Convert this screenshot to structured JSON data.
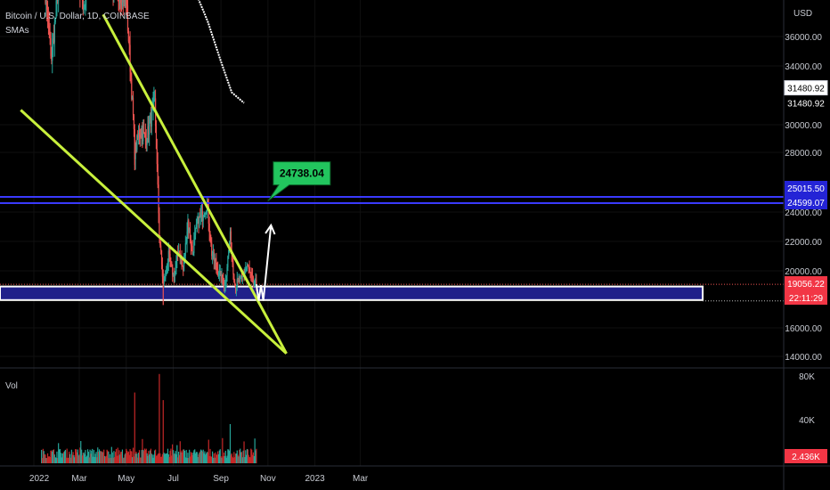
{
  "header": {
    "symbol": "Bitcoin / U.S. Dollar, 1D, COINBASE",
    "indicator": "SMAs"
  },
  "price_axis": {
    "unit": "USD",
    "ticks": [
      "36000.00",
      "34000.00",
      "30000.00",
      "28000.00",
      "24000.00",
      "22000.00",
      "20000.00",
      "16000.00",
      "14000.00"
    ],
    "tags": [
      {
        "label": "31480.92",
        "value": 31480.92,
        "style": "light"
      },
      {
        "label": "31480.92",
        "value": 31480.92,
        "style": "plain"
      },
      {
        "label": "25015.50",
        "value": 25015.5,
        "style": "blue"
      },
      {
        "label": "24599.07",
        "value": 24599.07,
        "style": "blue"
      },
      {
        "label": "19056.22",
        "value": 19056.22,
        "style": "red"
      },
      {
        "label": "22:11:29",
        "value": 18560,
        "style": "red"
      }
    ]
  },
  "volume_axis": {
    "title": "Vol",
    "ticks": [
      "80K",
      "40K"
    ],
    "last_label": "2.436K"
  },
  "time_axis": {
    "labels": [
      "2022",
      "Mar",
      "May",
      "Jul",
      "Sep",
      "Nov",
      "2023",
      "Mar"
    ]
  },
  "annotations": {
    "target_label": "24738.04",
    "colors": {
      "trendline": "#c8f03c",
      "zone": "#20208a",
      "resistance": "#3a3aff",
      "callout": "#22c55e",
      "path": "#ffffff",
      "sma": "#ffffff"
    }
  },
  "chart_data": {
    "type": "candlestick",
    "title": "Bitcoin / U.S. Dollar, 1D, COINBASE",
    "ylim": [
      13200,
      38600
    ],
    "ylabel": "USD",
    "x_range": [
      "2022-01-01",
      "2023-03-31"
    ],
    "last_price": 19056.22,
    "key_points": [
      {
        "date": "2022-01-10",
        "price": 41500
      },
      {
        "date": "2022-01-24",
        "price": 34500
      },
      {
        "date": "2022-02-10",
        "price": 44000
      },
      {
        "date": "2022-03-07",
        "price": 38000
      },
      {
        "date": "2022-03-28",
        "price": 47000
      },
      {
        "date": "2022-04-11",
        "price": 39500
      },
      {
        "date": "2022-05-01",
        "price": 38500
      },
      {
        "date": "2022-05-10",
        "price": 30500
      },
      {
        "date": "2022-05-12",
        "price": 28000
      },
      {
        "date": "2022-05-18",
        "price": 29500
      },
      {
        "date": "2022-05-27",
        "price": 29000
      },
      {
        "date": "2022-06-07",
        "price": 31500
      },
      {
        "date": "2022-06-13",
        "price": 22500
      },
      {
        "date": "2022-06-18",
        "price": 19000
      },
      {
        "date": "2022-06-25",
        "price": 21000
      },
      {
        "date": "2022-07-02",
        "price": 19500
      },
      {
        "date": "2022-07-08",
        "price": 21500
      },
      {
        "date": "2022-07-14",
        "price": 20000
      },
      {
        "date": "2022-07-20",
        "price": 23400
      },
      {
        "date": "2022-07-26",
        "price": 21200
      },
      {
        "date": "2022-08-01",
        "price": 23200
      },
      {
        "date": "2022-08-08",
        "price": 23800
      },
      {
        "date": "2022-08-14",
        "price": 24600
      },
      {
        "date": "2022-08-20",
        "price": 21200
      },
      {
        "date": "2022-08-28",
        "price": 20000
      },
      {
        "date": "2022-09-06",
        "price": 19000
      },
      {
        "date": "2022-09-13",
        "price": 22300
      },
      {
        "date": "2022-09-19",
        "price": 19000
      },
      {
        "date": "2022-09-28",
        "price": 19400
      },
      {
        "date": "2022-10-05",
        "price": 20300
      },
      {
        "date": "2022-10-13",
        "price": 19100
      },
      {
        "date": "2022-10-17",
        "price": 19056
      }
    ],
    "sma": [
      {
        "date": "2022-07-31",
        "price": 38900
      },
      {
        "date": "2022-08-15",
        "price": 37000
      },
      {
        "date": "2022-09-01",
        "price": 34300
      },
      {
        "date": "2022-09-15",
        "price": 32200
      },
      {
        "date": "2022-10-01",
        "price": 31480.92
      }
    ],
    "trendlines": [
      {
        "name": "upper",
        "from": {
          "date": "2022-04-01",
          "price": 37500
        },
        "to": {
          "date": "2022-11-25",
          "price": 14200
        }
      },
      {
        "name": "lower",
        "from": {
          "date": "2021-12-15",
          "price": 31000
        },
        "to": {
          "date": "2022-11-25",
          "price": 14200
        }
      }
    ],
    "support_zone": {
      "from": 17950,
      "to": 18900
    },
    "resistance_lines": [
      25015.5,
      24599.07
    ],
    "projection": [
      {
        "date": "2022-10-17",
        "price": 19056
      },
      {
        "date": "2022-10-20",
        "price": 17900
      },
      {
        "date": "2022-10-23",
        "price": 19000
      },
      {
        "date": "2022-10-26",
        "price": 17900
      },
      {
        "date": "2022-11-05",
        "price": 23100
      }
    ],
    "target": {
      "date": "2022-11-01",
      "price": 24738.04
    },
    "volume": {
      "ylim": [
        0,
        90000
      ],
      "ticks": [
        80000,
        40000
      ],
      "peaks": [
        {
          "date": "2022-05-12",
          "value": 65000
        },
        {
          "date": "2022-06-13",
          "value": 82000
        },
        {
          "date": "2022-06-18",
          "value": 58000
        },
        {
          "date": "2022-09-13",
          "value": 36000
        }
      ]
    }
  }
}
